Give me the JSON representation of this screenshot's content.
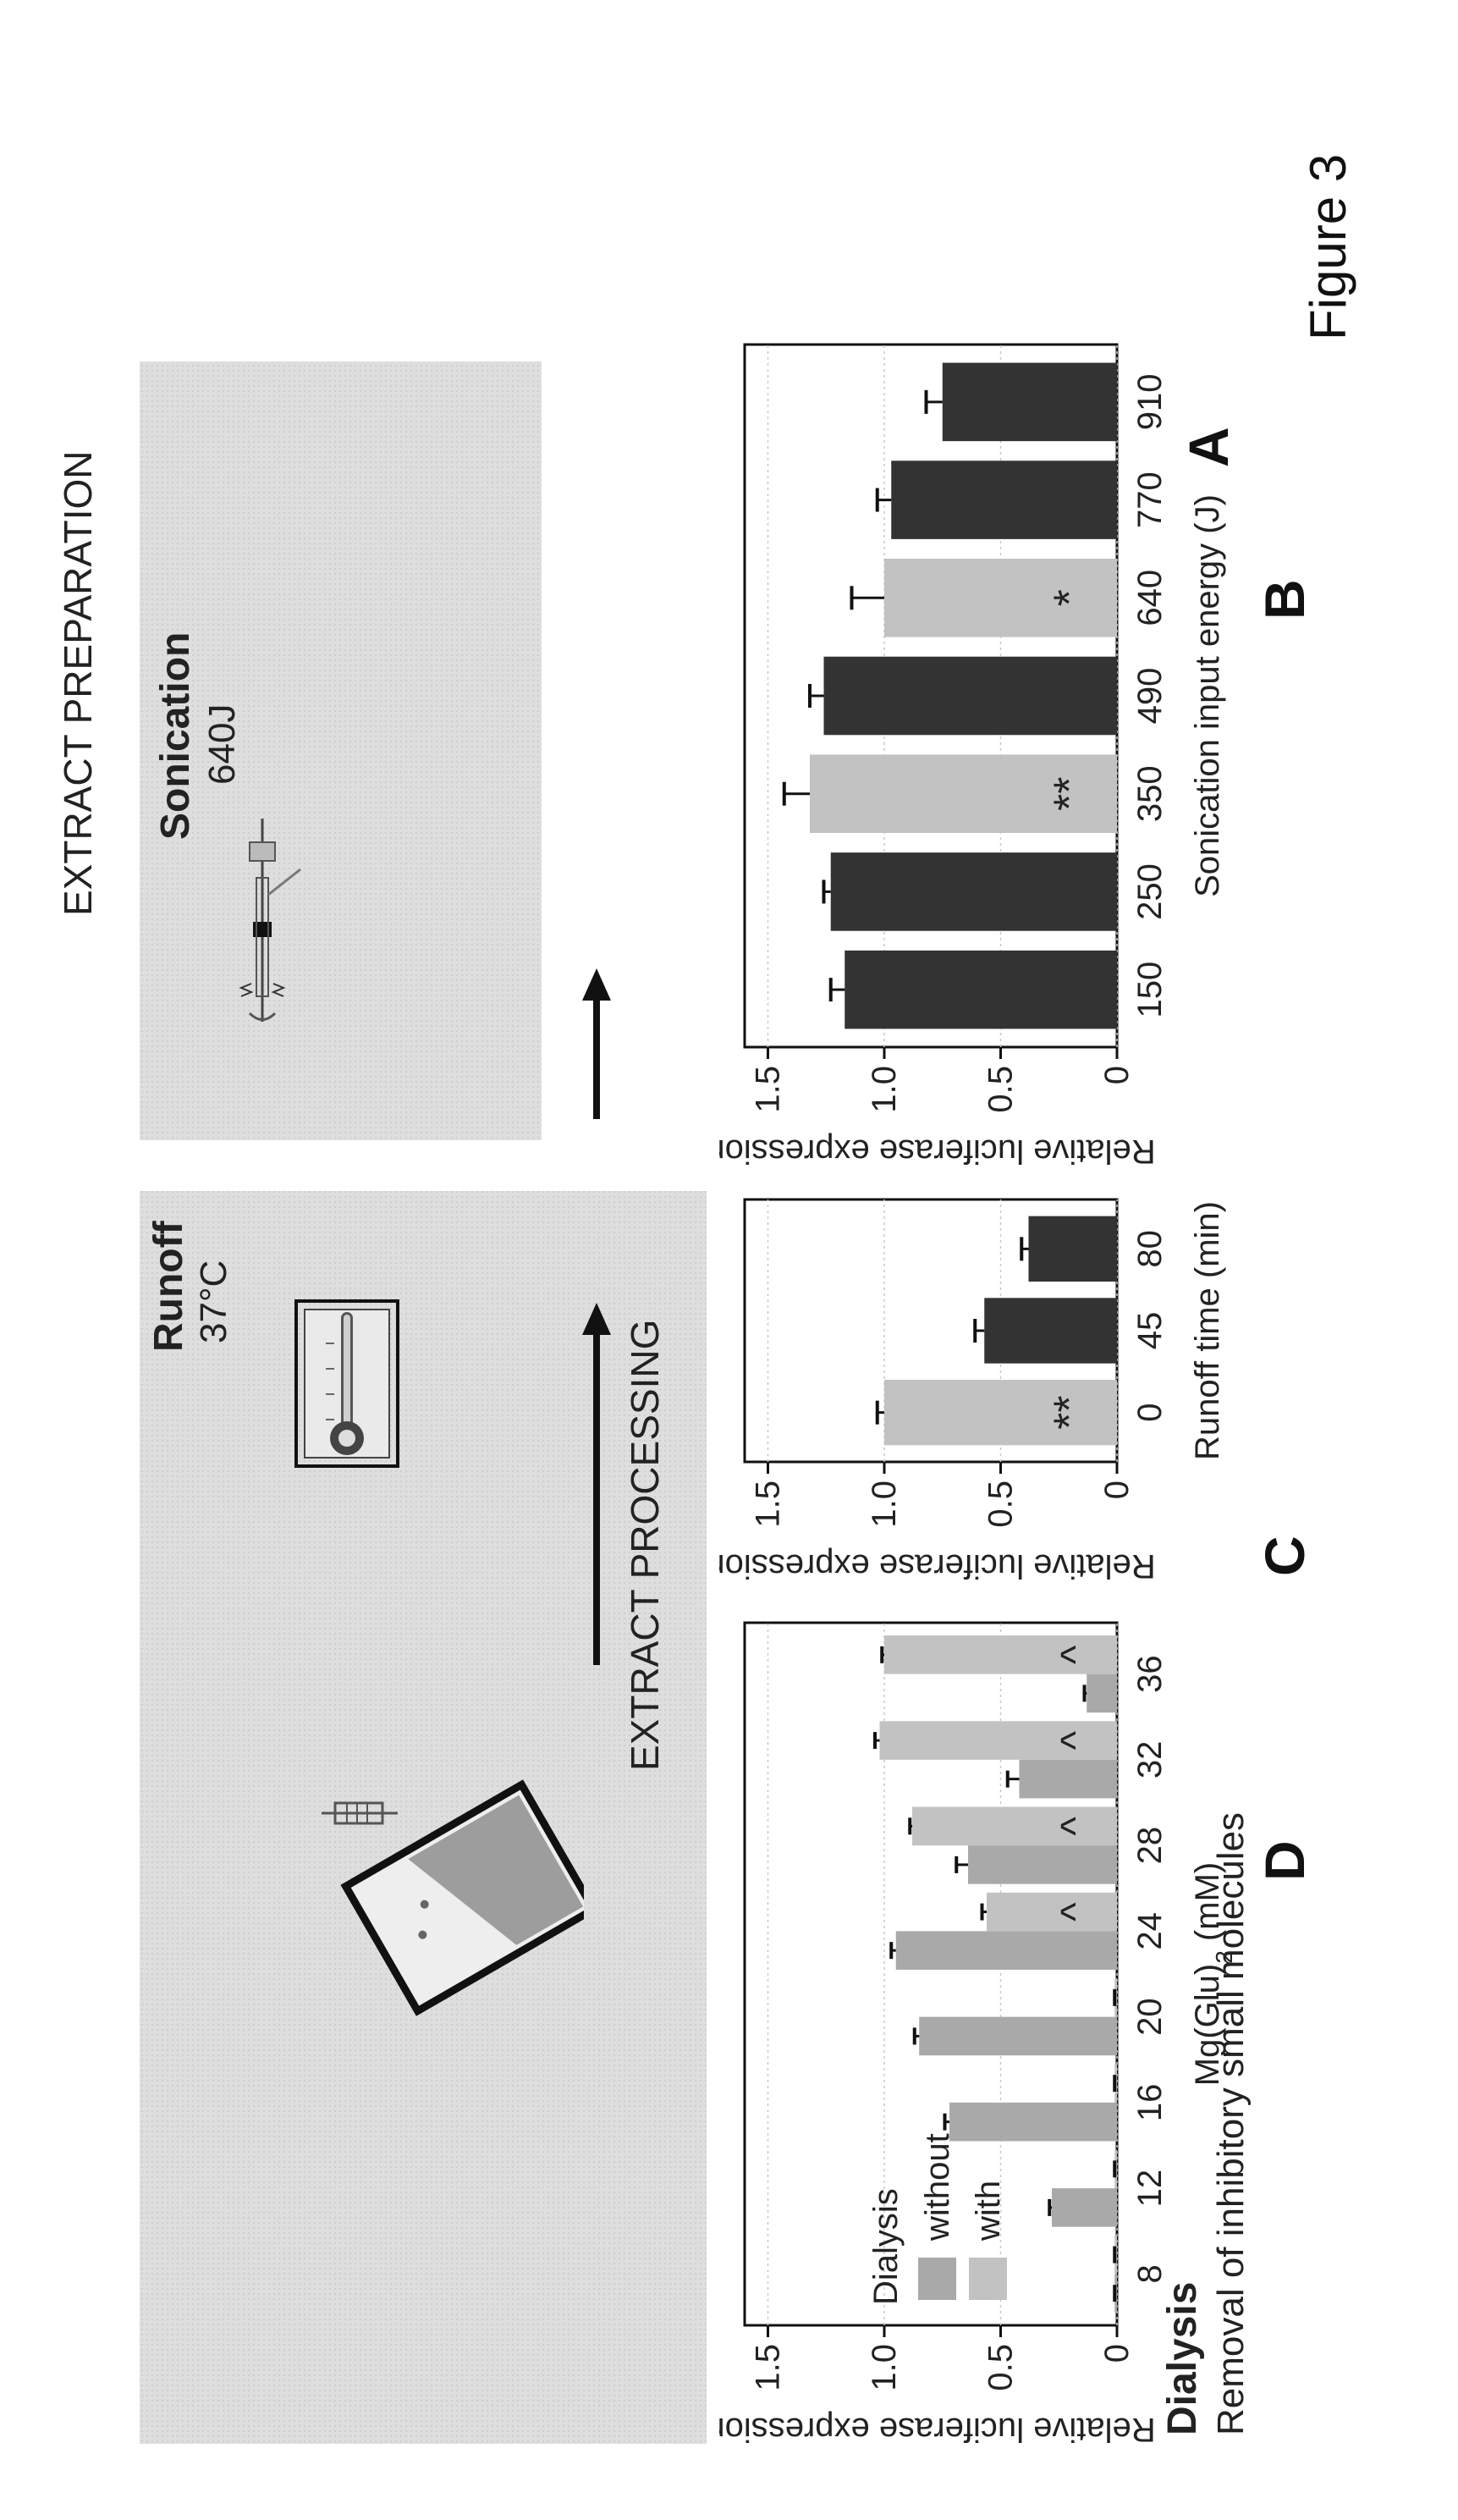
{
  "figure_caption": "Figure 3",
  "panel_labels": {
    "a": "A",
    "b": "B",
    "c": "C",
    "d": "D"
  },
  "panel_a": {
    "left_heading": "EXTRACT PREPARATION",
    "right_heading": "EXTRACT PROCESSING",
    "steps": [
      {
        "name": "Sonication",
        "detail": "640J"
      },
      {
        "name": "Runoff",
        "detail": "37°C"
      },
      {
        "name": "Dialysis",
        "detail": "Removal of inhibitory small molecules"
      }
    ]
  },
  "colors": {
    "dark_bar": "#333333",
    "light_bar": "#c2c2c2",
    "mid_bar": "#a9a9a9",
    "panel_bg": "#dedede"
  },
  "icons": [
    "sonicator-probe-icon",
    "thermometer-icon",
    "dialysis-cassette-icon",
    "right-arrow-icon"
  ],
  "chart_data": [
    {
      "id": "B",
      "type": "bar",
      "categories": [
        "150",
        "250",
        "350",
        "490",
        "640",
        "770",
        "910"
      ],
      "values": [
        1.17,
        1.23,
        1.32,
        1.26,
        1.0,
        0.97,
        0.75
      ],
      "errors": [
        0.06,
        0.03,
        0.11,
        0.06,
        0.14,
        0.06,
        0.07
      ],
      "highlight": [
        false,
        false,
        true,
        false,
        true,
        false,
        false
      ],
      "annotations": [
        "",
        "",
        "**",
        "",
        "*",
        "",
        ""
      ],
      "xlabel": "Sonication input energy (J)",
      "ylabel": "Relative luciferase expression",
      "yticks": [
        "0",
        "0.5",
        "1.0",
        "1.5"
      ],
      "ylim": [
        0,
        1.6
      ],
      "grid": true
    },
    {
      "id": "C",
      "type": "bar",
      "categories": [
        "0",
        "45",
        "80"
      ],
      "values": [
        1.0,
        0.57,
        0.38
      ],
      "errors": [
        0.03,
        0.04,
        0.03
      ],
      "highlight": [
        true,
        false,
        false
      ],
      "annotations": [
        "**",
        "",
        ""
      ],
      "xlabel": "Runoff time (min)",
      "ylabel": "Relative luciferase expression",
      "yticks": [
        "0",
        "0.5",
        "1.0",
        "1.5"
      ],
      "ylim": [
        0,
        1.6
      ],
      "grid": true
    },
    {
      "id": "D",
      "type": "bar",
      "categories": [
        "8",
        "12",
        "16",
        "20",
        "24",
        "28",
        "32",
        "36"
      ],
      "series": [
        {
          "name": "without",
          "values": [
            0.01,
            0.28,
            0.72,
            0.85,
            0.95,
            0.64,
            0.42,
            0.13
          ],
          "errors": [
            0.0,
            0.01,
            0.02,
            0.02,
            0.02,
            0.05,
            0.05,
            0.01
          ]
        },
        {
          "name": "with",
          "values": [
            0.01,
            0.01,
            0.01,
            0.01,
            0.56,
            0.88,
            1.02,
            1.0
          ],
          "errors": [
            0.0,
            0.0,
            0.0,
            0.0,
            0.02,
            0.01,
            0.02,
            0.01
          ]
        }
      ],
      "annotations": [
        "",
        "",
        "",
        "",
        "^",
        "^",
        "^",
        "^"
      ],
      "legend_title": "Dialysis",
      "legend_position": "top-left",
      "xlabel": "Mg(Glu)",
      "xlabel_sub": "2",
      "xlabel_unit": " (mM)",
      "ylabel": "Relative luciferase expression",
      "yticks": [
        "0",
        "0.5",
        "1.0",
        "1.5"
      ],
      "ylim": [
        0,
        1.6
      ],
      "grid": true
    }
  ]
}
